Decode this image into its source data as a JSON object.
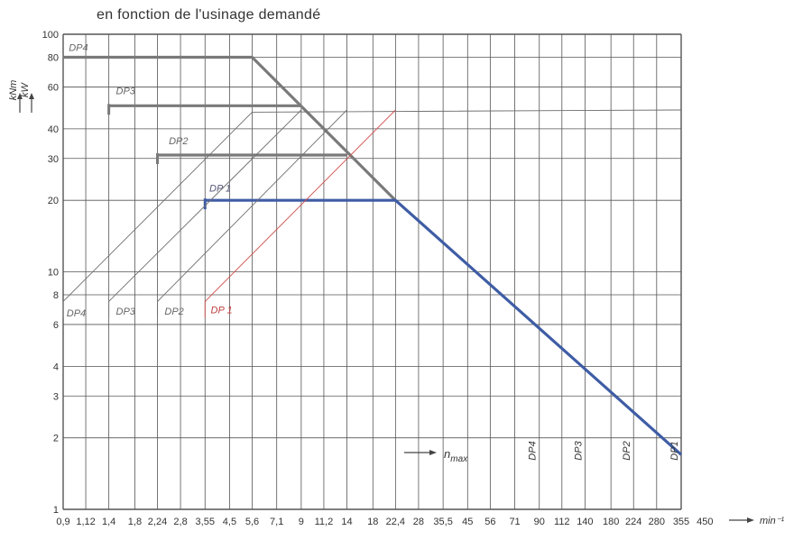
{
  "title": "en fonction de l'usinage demandé",
  "chart_data": {
    "type": "line",
    "scale": "log-log",
    "y_unit_label_top": "kNm",
    "y_unit_label_bottom": "kW",
    "x_unit_label": "min⁻¹",
    "y_ticks": [
      1,
      2,
      3,
      4,
      6,
      8,
      10,
      20,
      30,
      40,
      60,
      80,
      100
    ],
    "x_ticks": [
      "0,9",
      "1,12",
      "1,4",
      "1,8",
      "2,24",
      "2,8",
      "3,55",
      "4,5",
      "5,6",
      "7,1",
      "9",
      "11,2",
      "14",
      "18",
      "22,4",
      "28",
      "35,5",
      "45",
      "56",
      "71",
      "90",
      "112",
      "140",
      "180",
      "224",
      "280",
      "355",
      "450"
    ],
    "grid": true,
    "nmax_label": "n",
    "nmax_subscript": "max",
    "series": [
      {
        "name": "DP4",
        "kind": "torque",
        "color": "#7a7a7a",
        "points": [
          [
            0.9,
            80
          ],
          [
            5.6,
            80
          ],
          [
            22.4,
            20
          ]
        ]
      },
      {
        "name": "DP3",
        "kind": "torque",
        "color": "#7a7a7a",
        "points": [
          [
            1.4,
            50
          ],
          [
            9,
            50
          ]
        ]
      },
      {
        "name": "DP2",
        "kind": "torque",
        "color": "#7a7a7a",
        "points": [
          [
            2.24,
            31
          ],
          [
            14,
            31
          ]
        ]
      },
      {
        "name": "DP1",
        "kind": "torque",
        "color": "#3f5da5",
        "points": [
          [
            3.55,
            20
          ],
          [
            22.4,
            20
          ],
          [
            355,
            1.7
          ]
        ]
      },
      {
        "name": "DP4",
        "kind": "power",
        "color": "#6e6e6e",
        "points": [
          [
            0.9,
            7.5
          ],
          [
            5.6,
            47
          ],
          [
            355,
            48
          ]
        ]
      },
      {
        "name": "DP3",
        "kind": "power",
        "color": "#6e6e6e",
        "points": [
          [
            1.4,
            7.5
          ],
          [
            9,
            48
          ]
        ]
      },
      {
        "name": "DP2",
        "kind": "power",
        "color": "#6e6e6e",
        "points": [
          [
            2.24,
            7.5
          ],
          [
            14,
            48
          ]
        ]
      },
      {
        "name": "DP1",
        "kind": "power",
        "color": "#d24a4a",
        "points": [
          [
            3.55,
            7.5
          ],
          [
            22.4,
            48
          ]
        ]
      }
    ],
    "nmax": [
      {
        "name": "DP4",
        "x": 90
      },
      {
        "name": "DP3",
        "x": 140
      },
      {
        "name": "DP2",
        "x": 224
      },
      {
        "name": "DP1",
        "x": 355
      }
    ],
    "curve_labels": [
      {
        "text": "DP4",
        "x": 0.95,
        "y": 85,
        "color": "#666666"
      },
      {
        "text": "DP3",
        "x": 1.5,
        "y": 56,
        "color": "#666666"
      },
      {
        "text": "DP2",
        "x": 2.5,
        "y": 34.5,
        "color": "#666666"
      },
      {
        "text": "DP 1",
        "x": 3.7,
        "y": 21.8,
        "color": "#555577"
      },
      {
        "text": "DP4",
        "x": 0.93,
        "y": 6.5,
        "color": "#666666"
      },
      {
        "text": "DP3",
        "x": 1.5,
        "y": 6.6,
        "color": "#666666"
      },
      {
        "text": "DP2",
        "x": 2.4,
        "y": 6.6,
        "color": "#666666"
      },
      {
        "text": "DP 1",
        "x": 3.75,
        "y": 6.7,
        "color": "#c04040"
      }
    ]
  }
}
